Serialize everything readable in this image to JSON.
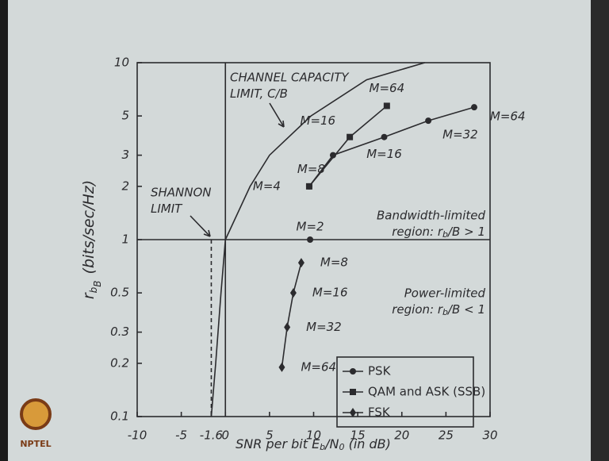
{
  "chart_data": {
    "type": "line",
    "title_lines": [
      "r",
      "b",
      "B",
      "(bits/sec/Hz)"
    ],
    "x_label": [
      "SNR per bit E",
      "b",
      "/N",
      "0",
      " (in dB)"
    ],
    "xlim": [
      -10,
      30
    ],
    "ylim": [
      0.1,
      10
    ],
    "log_y": true,
    "xticks": [
      -10,
      -5,
      -1.6,
      0,
      5,
      10,
      15,
      20,
      25,
      30
    ],
    "yticks": [
      10,
      5,
      3,
      2,
      1,
      0.5,
      0.3,
      0.2,
      0.1
    ],
    "capacity_curve": {
      "x": [
        -1.6,
        -1.1,
        -0.5,
        0,
        2.8,
        5,
        9.7,
        16,
        22.6
      ],
      "values": [
        0.1,
        0.2,
        0.5,
        1,
        2,
        3,
        5,
        8,
        10
      ]
    },
    "series": [
      {
        "name": "PSK",
        "marker": "circle",
        "color": "#2b2b2e",
        "x": [
          9.6,
          null,
          9.5,
          12.2,
          18,
          23,
          28.2
        ],
        "values": [
          1,
          null,
          2,
          3,
          3.8,
          4.7,
          5.6
        ],
        "labels": [
          "M=2",
          null,
          "M=4",
          "M=8",
          "M=16",
          "M=32",
          "M=64"
        ]
      },
      {
        "name": "QAM and ASK (SSB)",
        "marker": "square",
        "color": "#2b2b2e",
        "x": [
          9.5,
          14.1,
          18.3
        ],
        "values": [
          2,
          3.8,
          5.7
        ],
        "labels": [
          null,
          "M=16",
          "M=64"
        ]
      },
      {
        "name": "FSK",
        "marker": "diamond",
        "color": "#2b2b2e",
        "x": [
          8.6,
          7.7,
          7.0,
          6.4
        ],
        "values": [
          0.74,
          0.5,
          0.32,
          0.19
        ],
        "labels": [
          "M=8",
          "M=16",
          "M=32",
          "M=64"
        ]
      }
    ],
    "annotations": [
      {
        "lines": [
          "CHANNEL CAPACITY",
          "LIMIT, C/B"
        ]
      },
      {
        "lines": [
          "SHANNON",
          "LIMIT"
        ]
      },
      {
        "lines": [
          "Bandwidth-limited",
          "region: r",
          "b",
          "/B > 1"
        ]
      },
      {
        "lines": [
          "Power-limited",
          "region: r",
          "b",
          "/B < 1"
        ]
      }
    ],
    "logo": "NPTEL"
  }
}
